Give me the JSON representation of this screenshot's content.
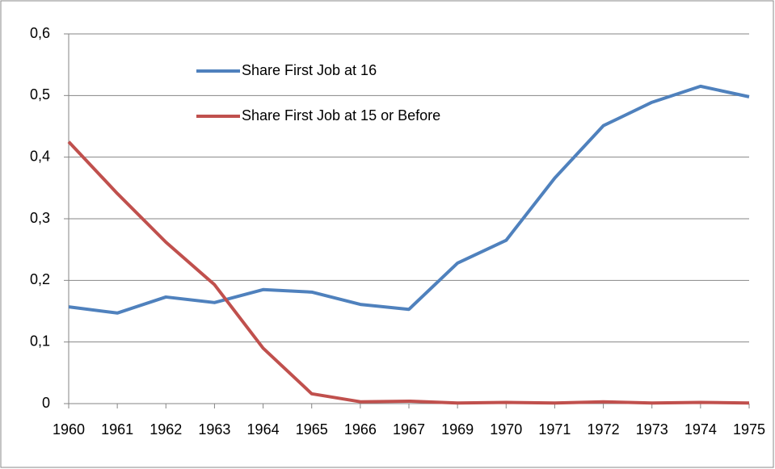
{
  "chart_data": {
    "type": "line",
    "categories": [
      "1960",
      "1961",
      "1962",
      "1963",
      "1964",
      "1965",
      "1966",
      "1967",
      "1969",
      "1970",
      "1971",
      "1972",
      "1973",
      "1974",
      "1975"
    ],
    "series": [
      {
        "name": "Share First Job at 16",
        "color": "#4f81bd",
        "values": [
          0.157,
          0.147,
          0.173,
          0.164,
          0.185,
          0.181,
          0.161,
          0.153,
          0.228,
          0.265,
          0.366,
          0.451,
          0.489,
          0.515,
          0.498
        ]
      },
      {
        "name": "Share First Job at 15 or Before",
        "color": "#c0504d",
        "values": [
          0.425,
          0.341,
          0.262,
          0.193,
          0.09,
          0.016,
          0.003,
          0.004,
          0.001,
          0.002,
          0.001,
          0.003,
          0.001,
          0.002,
          0.001
        ]
      }
    ],
    "ylim": [
      0,
      0.6
    ],
    "yticks": [
      0,
      {
        "value": 0.1,
        "label": "0,1"
      },
      {
        "value": 0.2,
        "label": "0,2"
      },
      {
        "value": 0.3,
        "label": "0,3"
      },
      {
        "value": 0.4,
        "label": "0,4"
      },
      {
        "value": 0.5,
        "label": "0,5"
      },
      {
        "value": 0.6,
        "label": "0,6"
      }
    ],
    "grid": true,
    "legend_position": "top"
  }
}
